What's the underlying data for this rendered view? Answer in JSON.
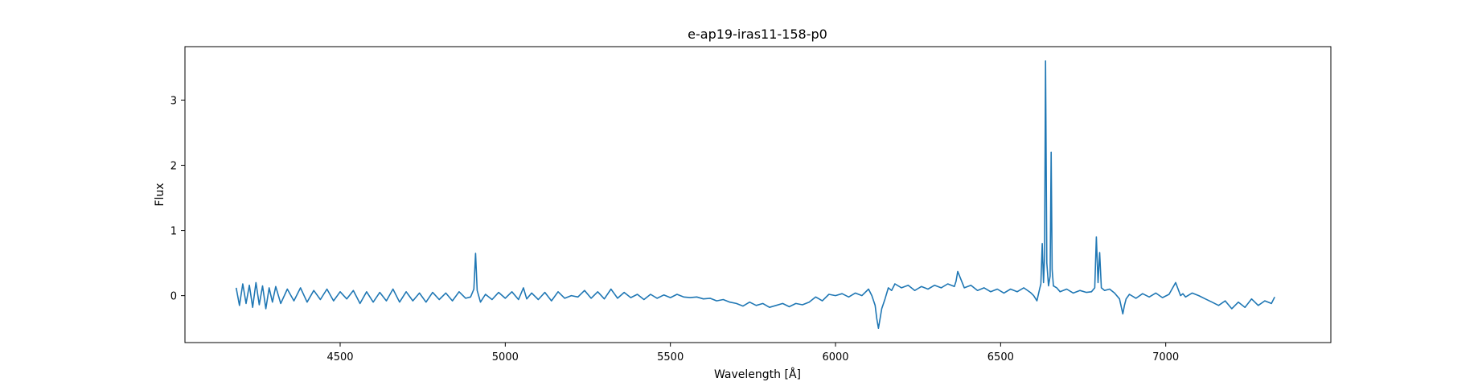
{
  "chart_data": {
    "type": "line",
    "title": "e-ap19-iras11-158-p0",
    "xlabel": "Wavelength [Å]",
    "ylabel": "Flux",
    "xlim": [
      4030,
      7500
    ],
    "ylim": [
      -0.72,
      3.82
    ],
    "xticks": [
      4500,
      5000,
      5500,
      6000,
      6500,
      7000
    ],
    "yticks": [
      0,
      1,
      2,
      3
    ],
    "grid": false,
    "legend": "none",
    "series": [
      {
        "color": "#1f77b4",
        "x": [
          4185,
          4195,
          4205,
          4215,
          4225,
          4235,
          4245,
          4255,
          4265,
          4275,
          4285,
          4295,
          4305,
          4320,
          4340,
          4360,
          4380,
          4400,
          4420,
          4440,
          4460,
          4480,
          4500,
          4520,
          4540,
          4560,
          4580,
          4600,
          4620,
          4640,
          4660,
          4680,
          4700,
          4720,
          4740,
          4760,
          4780,
          4800,
          4820,
          4840,
          4860,
          4880,
          4895,
          4905,
          4910,
          4915,
          4925,
          4940,
          4960,
          4980,
          5000,
          5020,
          5040,
          5055,
          5065,
          5080,
          5100,
          5120,
          5140,
          5160,
          5180,
          5200,
          5220,
          5240,
          5260,
          5280,
          5300,
          5320,
          5340,
          5360,
          5380,
          5400,
          5420,
          5440,
          5460,
          5480,
          5500,
          5520,
          5540,
          5560,
          5580,
          5600,
          5620,
          5640,
          5660,
          5680,
          5700,
          5720,
          5740,
          5760,
          5780,
          5800,
          5820,
          5840,
          5860,
          5880,
          5900,
          5920,
          5940,
          5960,
          5980,
          6000,
          6020,
          6040,
          6060,
          6080,
          6100,
          6110,
          6120,
          6125,
          6130,
          6140,
          6150,
          6160,
          6170,
          6180,
          6200,
          6220,
          6240,
          6260,
          6280,
          6300,
          6320,
          6340,
          6360,
          6365,
          6370,
          6390,
          6410,
          6430,
          6450,
          6470,
          6490,
          6510,
          6530,
          6550,
          6570,
          6590,
          6600,
          6610,
          6618,
          6622,
          6626,
          6630,
          6633,
          6636,
          6640,
          6645,
          6650,
          6653,
          6656,
          6660,
          6670,
          6680,
          6700,
          6720,
          6740,
          6760,
          6775,
          6785,
          6790,
          6795,
          6800,
          6805,
          6815,
          6830,
          6845,
          6860,
          6870,
          6875,
          6880,
          6890,
          6910,
          6930,
          6950,
          6970,
          6990,
          7010,
          7030,
          7045,
          7052,
          7060,
          7080,
          7100,
          7120,
          7140,
          7160,
          7180,
          7200,
          7220,
          7240,
          7260,
          7280,
          7300,
          7320,
          7330
        ],
        "y": [
          0.12,
          -0.15,
          0.18,
          -0.12,
          0.16,
          -0.18,
          0.2,
          -0.14,
          0.15,
          -0.2,
          0.12,
          -0.1,
          0.14,
          -0.12,
          0.1,
          -0.08,
          0.12,
          -0.1,
          0.08,
          -0.06,
          0.1,
          -0.08,
          0.06,
          -0.05,
          0.08,
          -0.12,
          0.06,
          -0.1,
          0.05,
          -0.08,
          0.1,
          -0.1,
          0.06,
          -0.08,
          0.04,
          -0.1,
          0.05,
          -0.06,
          0.04,
          -0.08,
          0.06,
          -0.04,
          -0.02,
          0.1,
          0.65,
          0.08,
          -0.1,
          0.02,
          -0.06,
          0.05,
          -0.04,
          0.06,
          -0.06,
          0.12,
          -0.05,
          0.04,
          -0.06,
          0.05,
          -0.08,
          0.06,
          -0.04,
          0.0,
          -0.02,
          0.08,
          -0.04,
          0.06,
          -0.05,
          0.1,
          -0.04,
          0.05,
          -0.03,
          0.02,
          -0.06,
          0.02,
          -0.04,
          0.01,
          -0.03,
          0.02,
          -0.02,
          -0.03,
          -0.02,
          -0.05,
          -0.04,
          -0.08,
          -0.06,
          -0.1,
          -0.12,
          -0.16,
          -0.1,
          -0.15,
          -0.12,
          -0.18,
          -0.15,
          -0.12,
          -0.17,
          -0.12,
          -0.14,
          -0.1,
          -0.02,
          -0.08,
          0.02,
          0.0,
          0.03,
          -0.02,
          0.04,
          0.0,
          0.1,
          0.0,
          -0.15,
          -0.35,
          -0.5,
          -0.2,
          -0.05,
          0.12,
          0.08,
          0.18,
          0.12,
          0.16,
          0.08,
          0.14,
          0.1,
          0.16,
          0.12,
          0.18,
          0.14,
          0.22,
          0.37,
          0.12,
          0.16,
          0.08,
          0.12,
          0.06,
          0.1,
          0.04,
          0.1,
          0.06,
          0.12,
          0.05,
          0.0,
          -0.08,
          0.1,
          0.18,
          0.8,
          0.2,
          0.6,
          3.6,
          0.5,
          0.15,
          0.3,
          2.2,
          0.4,
          0.15,
          0.12,
          0.06,
          0.1,
          0.04,
          0.08,
          0.05,
          0.06,
          0.12,
          0.9,
          0.2,
          0.66,
          0.12,
          0.08,
          0.1,
          0.04,
          -0.05,
          -0.28,
          -0.15,
          -0.05,
          0.02,
          -0.04,
          0.03,
          -0.02,
          0.04,
          -0.03,
          0.02,
          0.2,
          0.0,
          0.03,
          -0.02,
          0.04,
          0.0,
          -0.05,
          -0.1,
          -0.15,
          -0.08,
          -0.2,
          -0.1,
          -0.18,
          -0.05,
          -0.15,
          -0.08,
          -0.12,
          -0.02
        ]
      }
    ]
  }
}
